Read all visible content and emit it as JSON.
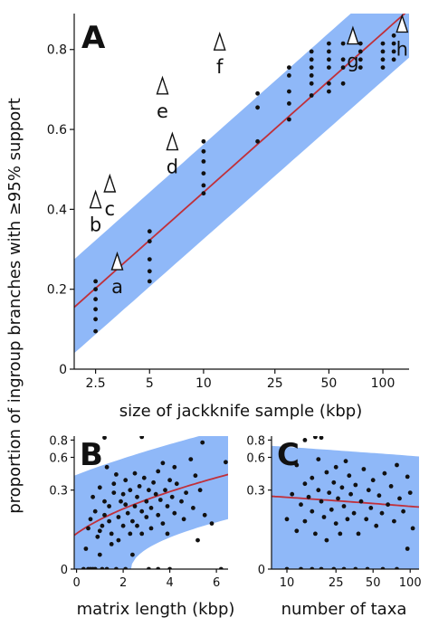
{
  "colors": {
    "band": "#8fb8f8",
    "fit_line": "#c0303a",
    "points": "#111111",
    "axis": "#111111"
  },
  "y_label": "proportion of ingroup branches with ≥95% support",
  "chart_data": [
    {
      "id": "A",
      "type": "scatter",
      "panel_label": "A",
      "xlabel": "size of jackknife sample (kbp)",
      "ylabel": "proportion of ingroup branches with ≥95% support",
      "x_scale": "log",
      "x_ticks": [
        2.5,
        5,
        10,
        25,
        50,
        100
      ],
      "x_tick_labels": [
        "2.5",
        "5",
        "10",
        "25",
        "50",
        "100"
      ],
      "xlim": [
        1.9,
        140
      ],
      "y_ticks": [
        0,
        0.2,
        0.4,
        0.6,
        0.8
      ],
      "y_tick_labels": [
        "0",
        "0.2",
        "0.4",
        "0.6",
        "0.8"
      ],
      "ylim": [
        0,
        0.89
      ],
      "fit_line": [
        [
          1.9,
          0.155
        ],
        [
          140,
          0.9
        ]
      ],
      "band": {
        "lower": [
          [
            1.9,
            0.04
          ],
          [
            140,
            0.78
          ]
        ],
        "upper": [
          [
            1.9,
            0.275
          ],
          [
            140,
            1.02
          ]
        ]
      },
      "points": [
        [
          2.5,
          0.095
        ],
        [
          2.5,
          0.125
        ],
        [
          2.5,
          0.15
        ],
        [
          2.5,
          0.175
        ],
        [
          2.5,
          0.2
        ],
        [
          2.5,
          0.22
        ],
        [
          5,
          0.22
        ],
        [
          5,
          0.245
        ],
        [
          5,
          0.275
        ],
        [
          5,
          0.32
        ],
        [
          5,
          0.345
        ],
        [
          10,
          0.44
        ],
        [
          10,
          0.46
        ],
        [
          10,
          0.49
        ],
        [
          10,
          0.52
        ],
        [
          10,
          0.545
        ],
        [
          10,
          0.57
        ],
        [
          20,
          0.57
        ],
        [
          20,
          0.655
        ],
        [
          20,
          0.69
        ],
        [
          30,
          0.625
        ],
        [
          30,
          0.665
        ],
        [
          30,
          0.695
        ],
        [
          30,
          0.735
        ],
        [
          30,
          0.755
        ],
        [
          40,
          0.685
        ],
        [
          40,
          0.715
        ],
        [
          40,
          0.735
        ],
        [
          40,
          0.755
        ],
        [
          40,
          0.775
        ],
        [
          40,
          0.795
        ],
        [
          50,
          0.695
        ],
        [
          50,
          0.715
        ],
        [
          50,
          0.755
        ],
        [
          50,
          0.775
        ],
        [
          50,
          0.795
        ],
        [
          50,
          0.815
        ],
        [
          60,
          0.715
        ],
        [
          60,
          0.755
        ],
        [
          60,
          0.775
        ],
        [
          60,
          0.815
        ],
        [
          75,
          0.755
        ],
        [
          75,
          0.775
        ],
        [
          75,
          0.795
        ],
        [
          75,
          0.815
        ],
        [
          100,
          0.755
        ],
        [
          100,
          0.775
        ],
        [
          100,
          0.795
        ],
        [
          100,
          0.815
        ],
        [
          115,
          0.775
        ],
        [
          115,
          0.795
        ],
        [
          115,
          0.815
        ],
        [
          115,
          0.835
        ]
      ],
      "annotations": [
        {
          "label": "a",
          "x": 3.3,
          "y": 0.19
        },
        {
          "label": "b",
          "x": 2.5,
          "y": 0.345
        },
        {
          "label": "c",
          "x": 3.0,
          "y": 0.385
        },
        {
          "label": "d",
          "x": 6.7,
          "y": 0.49
        },
        {
          "label": "e",
          "x": 5.9,
          "y": 0.63
        },
        {
          "label": "f",
          "x": 12.3,
          "y": 0.74
        },
        {
          "label": "g",
          "x": 68,
          "y": 0.755
        },
        {
          "label": "h",
          "x": 128,
          "y": 0.785
        }
      ]
    },
    {
      "id": "B",
      "type": "scatter",
      "panel_label": "B",
      "xlabel": "matrix length (kbp)",
      "x_ticks": [
        0,
        2,
        4,
        6
      ],
      "x_tick_labels": [
        "0",
        "2",
        "4",
        "6"
      ],
      "xlim": [
        -0.1,
        6.5
      ],
      "y_scale": "sqrt",
      "y_ticks": [
        0,
        0.3,
        0.6,
        0.8
      ],
      "y_tick_labels": [
        "0",
        "0.3",
        "0.6",
        "0.8"
      ],
      "ylim": [
        0,
        0.85
      ],
      "fit_line": [
        [
          -0.1,
          0.055
        ],
        [
          6.5,
          0.43
        ]
      ],
      "band": {
        "lower": [
          [
            -0.1,
            -0.07
          ],
          [
            6.5,
            0.12
          ]
        ],
        "upper": [
          [
            -0.1,
            0.42
          ],
          [
            6.5,
            0.95
          ]
        ]
      },
      "points": [
        [
          0.3,
          0.0
        ],
        [
          0.4,
          0.02
        ],
        [
          0.5,
          0.0
        ],
        [
          0.6,
          0.0
        ],
        [
          0.7,
          0.0
        ],
        [
          0.8,
          0.0
        ],
        [
          1.0,
          0.01
        ],
        [
          1.1,
          0.0
        ],
        [
          1.3,
          0.0
        ],
        [
          1.5,
          0.03
        ],
        [
          1.7,
          0.0
        ],
        [
          2.1,
          0.0
        ],
        [
          2.4,
          0.01
        ],
        [
          3.1,
          0.0
        ],
        [
          3.5,
          0.0
        ],
        [
          4.0,
          0.0
        ],
        [
          6.2,
          0.0
        ],
        [
          0.5,
          0.08
        ],
        [
          0.6,
          0.12
        ],
        [
          0.7,
          0.25
        ],
        [
          0.8,
          0.16
        ],
        [
          0.9,
          0.05
        ],
        [
          1.0,
          0.07
        ],
        [
          1.0,
          0.32
        ],
        [
          1.1,
          0.09
        ],
        [
          1.2,
          0.14
        ],
        [
          1.2,
          0.22
        ],
        [
          1.3,
          0.5
        ],
        [
          1.4,
          0.19
        ],
        [
          1.4,
          0.11
        ],
        [
          1.5,
          0.06
        ],
        [
          1.6,
          0.28
        ],
        [
          1.6,
          0.35
        ],
        [
          1.7,
          0.43
        ],
        [
          1.8,
          0.04
        ],
        [
          1.8,
          0.13
        ],
        [
          1.9,
          0.22
        ],
        [
          2.0,
          0.09
        ],
        [
          2.0,
          0.27
        ],
        [
          2.1,
          0.2
        ],
        [
          2.1,
          0.38
        ],
        [
          2.2,
          0.15
        ],
        [
          2.3,
          0.06
        ],
        [
          2.3,
          0.3
        ],
        [
          2.4,
          0.11
        ],
        [
          2.5,
          0.19
        ],
        [
          2.5,
          0.44
        ],
        [
          2.6,
          0.25
        ],
        [
          2.6,
          0.09
        ],
        [
          2.7,
          0.33
        ],
        [
          2.8,
          0.16
        ],
        [
          2.8,
          0.06
        ],
        [
          2.9,
          0.4
        ],
        [
          3.0,
          0.22
        ],
        [
          3.0,
          0.13
        ],
        [
          3.1,
          0.3
        ],
        [
          3.2,
          0.18
        ],
        [
          3.2,
          0.08
        ],
        [
          3.3,
          0.36
        ],
        [
          3.4,
          0.27
        ],
        [
          3.5,
          0.14
        ],
        [
          3.5,
          0.46
        ],
        [
          3.6,
          0.23
        ],
        [
          3.7,
          0.1
        ],
        [
          3.7,
          0.54
        ],
        [
          3.8,
          0.3
        ],
        [
          3.9,
          0.19
        ],
        [
          3.9,
          0.06
        ],
        [
          4.0,
          0.38
        ],
        [
          4.1,
          0.25
        ],
        [
          4.2,
          0.15
        ],
        [
          4.2,
          0.5
        ],
        [
          4.3,
          0.35
        ],
        [
          4.5,
          0.22
        ],
        [
          4.6,
          0.12
        ],
        [
          4.7,
          0.28
        ],
        [
          4.9,
          0.58
        ],
        [
          5.0,
          0.18
        ],
        [
          5.1,
          0.42
        ],
        [
          5.2,
          0.04
        ],
        [
          5.3,
          0.3
        ],
        [
          5.5,
          0.14
        ],
        [
          5.8,
          0.1
        ],
        [
          6.4,
          0.55
        ],
        [
          1.2,
          0.83
        ],
        [
          2.8,
          0.84
        ],
        [
          5.4,
          0.77
        ]
      ]
    },
    {
      "id": "C",
      "type": "scatter",
      "panel_label": "C",
      "xlabel": "number of taxa",
      "x_scale": "log",
      "x_ticks": [
        10,
        25,
        50,
        100
      ],
      "x_tick_labels": [
        "10",
        "25",
        "50",
        "100"
      ],
      "xlim": [
        7.5,
        118
      ],
      "y_scale": "sqrt",
      "y_ticks": [
        0,
        0.3,
        0.6,
        0.8
      ],
      "y_tick_labels": [
        "0",
        "0.3",
        "0.6",
        "0.8"
      ],
      "ylim": [
        0,
        0.85
      ],
      "fit_line": [
        [
          7.5,
          0.255
        ],
        [
          118,
          0.185
        ]
      ],
      "band": {
        "lower": [
          [
            7.5,
            -0.05
          ],
          [
            118,
            -0.05
          ]
        ],
        "upper": [
          [
            7.5,
            0.73
          ],
          [
            118,
            0.61
          ]
        ]
      },
      "points": [
        [
          10,
          0.0
        ],
        [
          13,
          0.0
        ],
        [
          16,
          0.0
        ],
        [
          19,
          0.0
        ],
        [
          24,
          0.0
        ],
        [
          29,
          0.0
        ],
        [
          36,
          0.0
        ],
        [
          45,
          0.0
        ],
        [
          60,
          0.0
        ],
        [
          78,
          0.0
        ],
        [
          95,
          0.02
        ],
        [
          10,
          0.12
        ],
        [
          11,
          0.27
        ],
        [
          12,
          0.07
        ],
        [
          12,
          0.52
        ],
        [
          13,
          0.2
        ],
        [
          14,
          0.35
        ],
        [
          14,
          0.11
        ],
        [
          15,
          0.25
        ],
        [
          16,
          0.4
        ],
        [
          16,
          0.16
        ],
        [
          17,
          0.06
        ],
        [
          18,
          0.3
        ],
        [
          18,
          0.58
        ],
        [
          19,
          0.22
        ],
        [
          20,
          0.13
        ],
        [
          21,
          0.45
        ],
        [
          21,
          0.04
        ],
        [
          22,
          0.28
        ],
        [
          23,
          0.17
        ],
        [
          24,
          0.36
        ],
        [
          25,
          0.5
        ],
        [
          25,
          0.1
        ],
        [
          26,
          0.24
        ],
        [
          27,
          0.06
        ],
        [
          28,
          0.32
        ],
        [
          29,
          0.19
        ],
        [
          30,
          0.56
        ],
        [
          31,
          0.12
        ],
        [
          32,
          0.42
        ],
        [
          33,
          0.27
        ],
        [
          35,
          0.15
        ],
        [
          36,
          0.34
        ],
        [
          38,
          0.06
        ],
        [
          40,
          0.22
        ],
        [
          42,
          0.48
        ],
        [
          44,
          0.12
        ],
        [
          46,
          0.3
        ],
        [
          48,
          0.18
        ],
        [
          50,
          0.38
        ],
        [
          53,
          0.09
        ],
        [
          56,
          0.26
        ],
        [
          59,
          0.15
        ],
        [
          62,
          0.44
        ],
        [
          66,
          0.2
        ],
        [
          70,
          0.33
        ],
        [
          74,
          0.11
        ],
        [
          78,
          0.52
        ],
        [
          82,
          0.24
        ],
        [
          88,
          0.16
        ],
        [
          95,
          0.41
        ],
        [
          100,
          0.28
        ],
        [
          105,
          0.08
        ],
        [
          17,
          0.84
        ],
        [
          19,
          0.83
        ],
        [
          14,
          0.8
        ]
      ]
    }
  ]
}
